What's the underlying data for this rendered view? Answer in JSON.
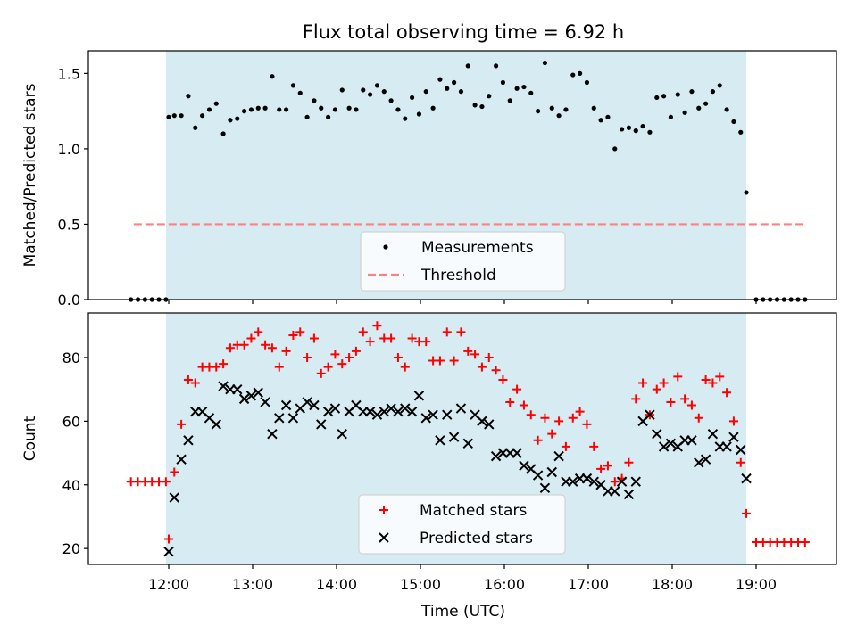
{
  "chart_data": [
    {
      "type": "scatter",
      "title": "Flux total observing time = 6.92 h",
      "ylabel": "Matched/Predicted stars",
      "xlabel": "",
      "ylim": [
        0,
        1.65
      ],
      "yticks": [
        "0.0",
        "0.5",
        "1.0",
        "1.5"
      ],
      "shaded_span": [
        "11:58",
        "18:53"
      ],
      "legend": {
        "placement": "lower-center",
        "entries": [
          "Measurements",
          "Threshold"
        ]
      },
      "threshold": {
        "name": "Threshold",
        "value": 0.5,
        "x_range": [
          "11:35",
          "19:35"
        ],
        "color": "#ff8080"
      },
      "series": [
        {
          "name": "Measurements",
          "color": "#000000",
          "x": [
            "11:33",
            "11:38",
            "11:43",
            "11:48",
            "11:53",
            "11:58",
            "12:00",
            "12:04",
            "12:09",
            "12:14",
            "12:19",
            "12:24",
            "12:29",
            "12:34",
            "12:39",
            "12:44",
            "12:49",
            "12:54",
            "12:59",
            "13:04",
            "13:09",
            "13:14",
            "13:19",
            "13:24",
            "13:29",
            "13:34",
            "13:39",
            "13:44",
            "13:49",
            "13:54",
            "13:59",
            "14:04",
            "14:09",
            "14:14",
            "14:19",
            "14:24",
            "14:29",
            "14:34",
            "14:39",
            "14:44",
            "14:49",
            "14:54",
            "14:59",
            "15:04",
            "15:09",
            "15:14",
            "15:19",
            "15:24",
            "15:29",
            "15:34",
            "15:39",
            "15:44",
            "15:49",
            "15:54",
            "15:59",
            "16:04",
            "16:09",
            "16:14",
            "16:19",
            "16:24",
            "16:29",
            "16:34",
            "16:39",
            "16:44",
            "16:49",
            "16:54",
            "16:59",
            "17:04",
            "17:09",
            "17:14",
            "17:19",
            "17:24",
            "17:29",
            "17:34",
            "17:39",
            "17:44",
            "17:49",
            "17:54",
            "17:59",
            "18:04",
            "18:09",
            "18:14",
            "18:19",
            "18:24",
            "18:29",
            "18:34",
            "18:39",
            "18:44",
            "18:49",
            "18:53",
            "19:00",
            "19:05",
            "19:10",
            "19:15",
            "19:20",
            "19:25",
            "19:30",
            "19:35"
          ],
          "y": [
            0,
            0,
            0,
            0,
            0,
            0,
            1.21,
            1.22,
            1.22,
            1.35,
            1.14,
            1.22,
            1.26,
            1.3,
            1.1,
            1.19,
            1.2,
            1.25,
            1.26,
            1.27,
            1.27,
            1.48,
            1.26,
            1.26,
            1.42,
            1.37,
            1.21,
            1.32,
            1.27,
            1.21,
            1.26,
            1.39,
            1.27,
            1.26,
            1.39,
            1.36,
            1.42,
            1.38,
            1.32,
            1.26,
            1.2,
            1.34,
            1.23,
            1.38,
            1.27,
            1.46,
            1.4,
            1.44,
            1.38,
            1.55,
            1.29,
            1.28,
            1.35,
            1.55,
            1.44,
            1.32,
            1.4,
            1.41,
            1.37,
            1.25,
            1.57,
            1.27,
            1.22,
            1.26,
            1.49,
            1.5,
            1.44,
            1.27,
            1.19,
            1.21,
            1.0,
            1.13,
            1.14,
            1.12,
            1.15,
            1.11,
            1.34,
            1.35,
            1.21,
            1.36,
            1.24,
            1.38,
            1.27,
            1.3,
            1.38,
            1.42,
            1.26,
            1.18,
            1.11,
            0.71,
            0,
            0,
            0,
            0,
            0,
            0,
            0,
            0
          ]
        }
      ]
    },
    {
      "type": "scatter",
      "title": "",
      "ylabel": "Count",
      "xlabel": "Time (UTC)",
      "ylim": [
        15,
        94
      ],
      "yticks": [
        "20",
        "40",
        "60",
        "80"
      ],
      "xticks": [
        "12:00",
        "13:00",
        "14:00",
        "15:00",
        "16:00",
        "17:00",
        "18:00",
        "19:00"
      ],
      "shaded_span": [
        "11:58",
        "18:53"
      ],
      "legend": {
        "placement": "lower-center",
        "entries": [
          "Matched stars",
          "Predicted stars"
        ]
      },
      "series": [
        {
          "name": "Matched stars",
          "marker": "plus",
          "color": "#ff0000",
          "x": [
            "11:33",
            "11:38",
            "11:43",
            "11:48",
            "11:53",
            "11:58",
            "12:00",
            "12:04",
            "12:09",
            "12:14",
            "12:19",
            "12:24",
            "12:29",
            "12:34",
            "12:39",
            "12:44",
            "12:49",
            "12:54",
            "12:59",
            "13:04",
            "13:09",
            "13:14",
            "13:19",
            "13:24",
            "13:29",
            "13:34",
            "13:39",
            "13:44",
            "13:49",
            "13:54",
            "13:59",
            "14:04",
            "14:09",
            "14:14",
            "14:19",
            "14:24",
            "14:29",
            "14:34",
            "14:39",
            "14:44",
            "14:49",
            "14:54",
            "14:59",
            "15:04",
            "15:09",
            "15:14",
            "15:19",
            "15:24",
            "15:29",
            "15:34",
            "15:39",
            "15:44",
            "15:49",
            "15:54",
            "15:59",
            "16:04",
            "16:09",
            "16:14",
            "16:19",
            "16:24",
            "16:29",
            "16:34",
            "16:39",
            "16:44",
            "16:49",
            "16:54",
            "16:59",
            "17:04",
            "17:09",
            "17:14",
            "17:19",
            "17:24",
            "17:29",
            "17:34",
            "17:39",
            "17:44",
            "17:49",
            "17:54",
            "17:59",
            "18:04",
            "18:09",
            "18:14",
            "18:19",
            "18:24",
            "18:29",
            "18:34",
            "18:39",
            "18:44",
            "18:49",
            "18:53",
            "19:00",
            "19:05",
            "19:10",
            "19:15",
            "19:20",
            "19:25",
            "19:30",
            "19:35"
          ],
          "y": [
            41,
            41,
            41,
            41,
            41,
            41,
            23,
            44,
            59,
            73,
            72,
            77,
            77,
            77,
            78,
            83,
            84,
            84,
            86,
            88,
            84,
            83,
            77,
            82,
            87,
            88,
            80,
            86,
            75,
            77,
            81,
            78,
            80,
            82,
            88,
            85,
            90,
            86,
            86,
            80,
            77,
            86,
            85,
            85,
            79,
            79,
            88,
            79,
            88,
            82,
            81,
            77,
            80,
            76,
            73,
            66,
            70,
            65,
            62,
            54,
            61,
            56,
            60,
            52,
            61,
            63,
            59,
            52,
            45,
            46,
            41,
            42,
            47,
            67,
            72,
            62,
            70,
            72,
            66,
            74,
            67,
            65,
            61,
            73,
            72,
            74,
            69,
            60,
            47,
            31,
            22,
            22,
            22,
            22,
            22,
            22,
            22,
            22
          ]
        },
        {
          "name": "Predicted stars",
          "marker": "x",
          "color": "#000000",
          "x": [
            "12:00",
            "12:04",
            "12:09",
            "12:14",
            "12:19",
            "12:24",
            "12:29",
            "12:34",
            "12:39",
            "12:44",
            "12:49",
            "12:54",
            "12:59",
            "13:04",
            "13:09",
            "13:14",
            "13:19",
            "13:24",
            "13:29",
            "13:34",
            "13:39",
            "13:44",
            "13:49",
            "13:54",
            "13:59",
            "14:04",
            "14:09",
            "14:14",
            "14:19",
            "14:24",
            "14:29",
            "14:34",
            "14:39",
            "14:44",
            "14:49",
            "14:54",
            "14:59",
            "15:04",
            "15:09",
            "15:14",
            "15:19",
            "15:24",
            "15:29",
            "15:34",
            "15:39",
            "15:44",
            "15:49",
            "15:54",
            "15:59",
            "16:04",
            "16:09",
            "16:14",
            "16:19",
            "16:24",
            "16:29",
            "16:34",
            "16:39",
            "16:44",
            "16:49",
            "16:54",
            "16:59",
            "17:04",
            "17:09",
            "17:14",
            "17:19",
            "17:24",
            "17:29",
            "17:34",
            "17:39",
            "17:44",
            "17:49",
            "17:54",
            "17:59",
            "18:04",
            "18:09",
            "18:14",
            "18:19",
            "18:24",
            "18:29",
            "18:34",
            "18:39",
            "18:44",
            "18:49",
            "18:53"
          ],
          "y": [
            19,
            36,
            48,
            54,
            63,
            63,
            61,
            59,
            71,
            70,
            70,
            67,
            68,
            69,
            66,
            56,
            61,
            65,
            61,
            64,
            66,
            65,
            59,
            63,
            64,
            56,
            63,
            65,
            63,
            63,
            62,
            63,
            64,
            63,
            64,
            63,
            68,
            61,
            62,
            54,
            62,
            55,
            64,
            53,
            62,
            60,
            59,
            49,
            50,
            50,
            50,
            46,
            45,
            43,
            39,
            44,
            49,
            41,
            41,
            42,
            42,
            41,
            40,
            38,
            38,
            41,
            37,
            41,
            60,
            62,
            56,
            52,
            53,
            52,
            54,
            54,
            47,
            48,
            56,
            52,
            52,
            55,
            51,
            42
          ]
        }
      ]
    }
  ]
}
